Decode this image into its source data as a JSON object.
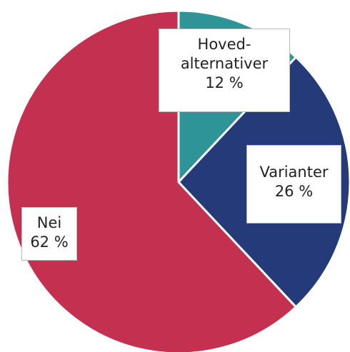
{
  "chart_data": {
    "type": "pie",
    "categories": [
      "Hoved-alternativer",
      "Varianter",
      "Nei"
    ],
    "values": [
      12,
      26,
      62
    ],
    "value_labels": [
      "12 %",
      "26 %",
      "62 %"
    ],
    "colors": [
      "#2e9498",
      "#253a78",
      "#c4304f"
    ]
  }
}
